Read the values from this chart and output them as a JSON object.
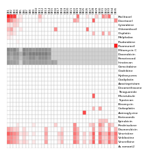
{
  "col_labels": [
    "CB1",
    "CB2",
    "CB3",
    "CB4",
    "CB5",
    "CB6",
    "CB7",
    "CB8",
    "CB9",
    "CB10",
    "CB11",
    "CB12",
    "CB13",
    "CB14",
    "CB15",
    "CB16",
    "CB17",
    "CB18",
    "CB19",
    "CB20",
    "CB21",
    "CB22",
    "CB23",
    "CB24",
    "CB25",
    "CB26",
    "CB27",
    "CB28",
    "CB29",
    "CB30",
    "CB31",
    "CB32",
    "CB33",
    "CB34",
    "CB35"
  ],
  "row_labels": [
    "Paclitaxel",
    "Docetaxel",
    "Cytarabine",
    "Chlorambucil",
    "Cisplatin",
    "Melphalan",
    "Fludarabine",
    "Fluorouracil",
    "Mitomycin C",
    "Doxorubicin",
    "Pemetrexed",
    "Irinotecan",
    "Gemcitabine",
    "Cladribine",
    "Hydroxyurea",
    "Oxaliplatin",
    "Azacitapristam",
    "Dexamethasone",
    "Thioguanide",
    "Microtubule",
    "Topotecan",
    "Bleomycin",
    "Carboplatin",
    "Aminoglycine",
    "Bortezomib",
    "Epirubicin",
    "Prednisolone",
    "Daunorubicin",
    "Vincristine",
    "Vinblastine",
    "Vinorelbine",
    "Ac.romant2"
  ],
  "grid": [
    [
      1.0,
      0.9,
      0.85,
      0.05,
      0.1,
      0.0,
      0.0,
      0.0,
      0.0,
      0.0,
      0.3,
      0.05,
      0.0,
      0.0,
      0.0,
      0.0,
      0.0,
      0.0,
      0.0,
      0.0,
      0.0,
      0.0,
      0.6,
      0.0,
      0.0,
      0.1,
      0.0,
      0.0,
      0.2,
      0.0,
      0.5,
      0.35,
      0.6,
      0.0,
      0.0
    ],
    [
      0.7,
      0.5,
      0.3,
      0.2,
      0.1,
      0.0,
      0.0,
      0.0,
      0.0,
      0.0,
      0.1,
      0.0,
      0.0,
      0.0,
      0.0,
      0.0,
      0.0,
      0.0,
      0.0,
      0.0,
      0.0,
      0.4,
      0.3,
      0.0,
      0.0,
      0.0,
      0.0,
      0.7,
      0.0,
      0.0,
      0.0,
      0.0,
      0.0,
      0.0,
      0.5
    ],
    [
      0.15,
      0.1,
      0.2,
      0.15,
      0.0,
      0.0,
      0.0,
      0.0,
      0.0,
      0.0,
      0.0,
      0.0,
      0.0,
      0.0,
      0.0,
      0.0,
      0.0,
      0.0,
      0.0,
      0.0,
      0.0,
      0.0,
      0.0,
      0.0,
      0.0,
      0.0,
      0.0,
      0.0,
      0.0,
      0.0,
      0.0,
      0.0,
      0.0,
      0.0,
      0.0
    ],
    [
      0.3,
      0.4,
      0.1,
      0.0,
      0.1,
      0.0,
      0.0,
      0.0,
      0.0,
      0.0,
      0.0,
      0.0,
      0.0,
      0.0,
      0.0,
      0.5,
      0.0,
      0.0,
      0.0,
      0.0,
      0.0,
      0.0,
      0.0,
      0.0,
      0.0,
      0.6,
      0.0,
      0.0,
      0.0,
      0.0,
      0.0,
      0.0,
      0.0,
      0.0,
      0.0
    ],
    [
      0.15,
      0.2,
      0.1,
      0.0,
      0.0,
      0.0,
      0.0,
      0.0,
      0.0,
      0.0,
      0.0,
      0.0,
      0.0,
      0.0,
      0.0,
      0.0,
      0.0,
      0.0,
      0.0,
      0.0,
      0.0,
      0.0,
      0.0,
      0.0,
      0.0,
      0.0,
      0.0,
      0.3,
      0.0,
      0.0,
      0.4,
      0.0,
      0.3,
      0.0,
      0.0
    ],
    [
      0.1,
      0.05,
      0.0,
      0.0,
      0.0,
      0.0,
      0.0,
      0.0,
      0.0,
      0.0,
      0.0,
      0.0,
      0.0,
      0.0,
      0.0,
      0.0,
      0.0,
      0.0,
      0.0,
      0.0,
      0.0,
      0.0,
      0.0,
      0.0,
      0.0,
      0.0,
      0.0,
      0.0,
      0.0,
      0.0,
      0.0,
      0.0,
      0.0,
      0.0,
      0.0
    ],
    [
      0.0,
      0.0,
      0.0,
      0.05,
      0.0,
      0.0,
      0.0,
      0.0,
      0.0,
      0.0,
      0.0,
      0.0,
      0.0,
      0.0,
      0.0,
      0.0,
      0.0,
      0.0,
      0.0,
      0.0,
      0.0,
      0.0,
      0.0,
      0.0,
      0.0,
      0.0,
      0.0,
      0.0,
      0.0,
      0.0,
      0.0,
      0.0,
      0.0,
      0.0,
      0.0
    ],
    [
      0.0,
      0.0,
      0.0,
      0.0,
      0.0,
      0.0,
      0.0,
      0.0,
      0.0,
      0.0,
      0.0,
      0.0,
      0.0,
      0.0,
      0.0,
      0.0,
      0.0,
      0.0,
      0.0,
      0.0,
      0.0,
      0.0,
      0.0,
      0.0,
      0.0,
      0.0,
      0.0,
      0.0,
      0.0,
      0.0,
      0.0,
      0.0,
      0.0,
      0.0,
      1.0
    ],
    [
      0.45,
      0.4,
      0.45,
      0.3,
      0.0,
      0.45,
      0.4,
      0.4,
      0.35,
      0.4,
      0.4,
      0.4,
      0.4,
      0.35,
      0.0,
      0.0,
      0.0,
      0.0,
      0.0,
      0.0,
      0.0,
      0.0,
      0.0,
      0.0,
      0.0,
      0.0,
      0.0,
      0.0,
      0.0,
      0.0,
      0.0,
      0.0,
      0.0,
      0.0,
      0.0
    ],
    [
      0.4,
      0.3,
      0.4,
      0.4,
      0.2,
      0.5,
      0.4,
      0.5,
      0.5,
      0.5,
      0.5,
      0.5,
      0.5,
      0.4,
      0.0,
      0.0,
      0.0,
      0.0,
      0.0,
      0.0,
      0.0,
      0.0,
      0.0,
      0.0,
      0.0,
      0.0,
      0.0,
      0.0,
      0.0,
      0.0,
      0.0,
      0.0,
      0.0,
      0.0,
      0.0
    ],
    [
      0.3,
      0.2,
      0.3,
      0.3,
      0.1,
      0.3,
      0.3,
      0.4,
      0.4,
      0.3,
      0.4,
      0.4,
      0.4,
      0.3,
      0.0,
      0.0,
      0.0,
      0.0,
      0.0,
      0.0,
      0.0,
      0.0,
      0.0,
      0.0,
      0.0,
      0.0,
      0.0,
      0.0,
      0.0,
      0.0,
      0.0,
      0.0,
      0.0,
      0.0,
      0.0
    ],
    [
      0.35,
      0.3,
      0.3,
      0.25,
      0.0,
      0.3,
      0.25,
      0.3,
      0.3,
      0.3,
      0.3,
      0.3,
      0.3,
      0.25,
      0.3,
      0.25,
      0.0,
      0.0,
      0.0,
      0.0,
      0.0,
      0.0,
      0.0,
      0.0,
      0.0,
      0.0,
      0.0,
      0.0,
      0.0,
      0.0,
      0.0,
      0.0,
      0.0,
      0.0,
      0.0
    ],
    [
      0.0,
      0.0,
      0.0,
      0.0,
      0.0,
      0.0,
      0.0,
      0.0,
      0.0,
      0.0,
      0.0,
      0.0,
      0.0,
      0.0,
      0.0,
      0.0,
      0.0,
      0.0,
      0.0,
      0.0,
      0.0,
      0.0,
      0.0,
      0.0,
      0.0,
      0.0,
      0.0,
      0.0,
      0.0,
      0.0,
      0.0,
      0.0,
      0.0,
      0.0,
      0.0
    ],
    [
      0.0,
      0.0,
      0.0,
      0.0,
      0.0,
      0.0,
      0.0,
      0.0,
      0.0,
      0.0,
      0.0,
      0.0,
      0.0,
      0.0,
      0.0,
      0.0,
      0.0,
      0.0,
      0.0,
      0.0,
      0.0,
      0.0,
      0.0,
      0.0,
      0.0,
      0.0,
      0.0,
      0.0,
      0.0,
      0.0,
      0.0,
      0.0,
      0.0,
      0.0,
      0.0
    ],
    [
      0.0,
      0.0,
      0.0,
      0.0,
      0.0,
      0.0,
      0.0,
      0.0,
      0.0,
      0.0,
      0.0,
      0.0,
      0.0,
      0.0,
      0.0,
      0.0,
      0.0,
      0.0,
      0.0,
      0.0,
      0.0,
      0.0,
      0.0,
      0.0,
      0.0,
      0.0,
      0.0,
      0.0,
      0.0,
      0.0,
      0.0,
      0.0,
      0.0,
      0.0,
      0.0
    ],
    [
      0.0,
      0.0,
      0.0,
      0.0,
      0.0,
      0.0,
      0.0,
      0.0,
      0.0,
      0.0,
      0.0,
      0.0,
      0.0,
      0.0,
      0.0,
      0.0,
      0.0,
      0.0,
      0.0,
      0.0,
      0.0,
      0.0,
      0.0,
      0.0,
      0.0,
      0.0,
      0.0,
      0.0,
      0.0,
      0.0,
      0.0,
      0.0,
      0.0,
      0.0,
      0.0
    ],
    [
      0.0,
      0.0,
      0.0,
      0.0,
      0.0,
      0.0,
      0.0,
      0.0,
      0.0,
      0.0,
      0.0,
      0.0,
      0.0,
      0.0,
      0.0,
      0.0,
      0.0,
      0.0,
      0.0,
      0.0,
      0.0,
      0.0,
      0.0,
      0.0,
      0.0,
      0.0,
      0.0,
      0.0,
      0.0,
      0.0,
      0.0,
      0.0,
      0.0,
      0.0,
      0.0
    ],
    [
      0.0,
      0.0,
      0.0,
      0.0,
      0.0,
      0.0,
      0.0,
      0.0,
      0.0,
      0.0,
      0.0,
      0.0,
      0.0,
      0.0,
      0.0,
      0.0,
      0.0,
      0.0,
      0.0,
      0.0,
      0.0,
      0.0,
      0.0,
      0.0,
      0.0,
      0.0,
      0.0,
      0.0,
      0.0,
      0.0,
      0.0,
      0.0,
      0.0,
      0.0,
      0.0
    ],
    [
      0.0,
      0.0,
      0.0,
      0.0,
      0.0,
      0.0,
      0.0,
      0.0,
      0.0,
      0.0,
      0.0,
      0.0,
      0.0,
      0.0,
      0.0,
      0.0,
      0.0,
      0.0,
      0.0,
      0.0,
      0.0,
      0.0,
      0.0,
      0.0,
      0.0,
      0.0,
      0.0,
      0.0,
      0.0,
      0.0,
      0.0,
      0.0,
      0.0,
      0.0,
      0.0
    ],
    [
      0.0,
      0.0,
      0.0,
      0.0,
      0.0,
      0.0,
      0.0,
      0.0,
      0.0,
      0.0,
      0.0,
      0.0,
      0.0,
      0.0,
      0.0,
      0.0,
      0.0,
      0.0,
      0.0,
      0.0,
      0.0,
      0.0,
      0.0,
      0.0,
      0.0,
      0.0,
      0.0,
      0.7,
      0.0,
      0.0,
      0.0,
      0.0,
      0.0,
      0.0,
      0.0
    ],
    [
      0.0,
      0.0,
      0.0,
      0.0,
      0.0,
      0.0,
      0.0,
      0.0,
      0.0,
      0.0,
      0.0,
      0.0,
      0.0,
      0.0,
      0.0,
      0.0,
      0.0,
      0.0,
      0.0,
      0.0,
      0.0,
      0.0,
      0.0,
      0.0,
      0.0,
      0.0,
      0.0,
      0.0,
      0.0,
      0.0,
      0.0,
      0.0,
      0.0,
      0.0,
      0.0
    ],
    [
      0.0,
      0.0,
      0.0,
      0.0,
      0.0,
      0.0,
      0.0,
      0.0,
      0.0,
      0.0,
      0.0,
      0.0,
      0.0,
      0.0,
      0.0,
      0.0,
      0.0,
      0.0,
      0.0,
      0.0,
      0.0,
      0.0,
      0.0,
      0.0,
      0.0,
      0.0,
      0.0,
      0.0,
      0.0,
      0.0,
      0.0,
      0.0,
      0.0,
      0.0,
      0.0
    ],
    [
      0.0,
      0.0,
      0.0,
      0.0,
      0.0,
      0.0,
      0.0,
      0.0,
      0.0,
      0.0,
      0.0,
      0.0,
      0.0,
      0.0,
      0.0,
      0.0,
      0.0,
      0.0,
      0.0,
      0.0,
      0.0,
      0.0,
      0.0,
      0.0,
      0.0,
      0.0,
      0.0,
      0.3,
      0.0,
      0.4,
      0.0,
      0.0,
      0.0,
      0.0,
      0.0
    ],
    [
      0.0,
      0.0,
      0.0,
      0.0,
      0.0,
      0.0,
      0.0,
      0.0,
      0.0,
      0.0,
      0.0,
      0.0,
      0.0,
      0.0,
      0.0,
      0.0,
      0.0,
      0.0,
      0.0,
      0.0,
      0.0,
      0.0,
      0.0,
      0.0,
      0.8,
      0.0,
      0.0,
      0.0,
      0.0,
      0.0,
      0.0,
      0.0,
      0.0,
      0.0,
      0.0
    ],
    [
      0.0,
      0.0,
      0.0,
      0.0,
      0.0,
      0.0,
      0.0,
      0.0,
      0.0,
      0.0,
      0.0,
      0.0,
      0.0,
      0.0,
      0.0,
      0.0,
      0.0,
      0.0,
      0.0,
      0.0,
      0.0,
      0.0,
      0.0,
      0.0,
      0.0,
      0.0,
      0.0,
      0.0,
      0.0,
      0.0,
      0.0,
      0.0,
      0.0,
      0.0,
      0.0
    ],
    [
      0.0,
      0.0,
      0.0,
      0.0,
      0.0,
      0.0,
      0.0,
      0.0,
      0.0,
      0.0,
      0.0,
      0.0,
      0.0,
      0.0,
      0.0,
      0.0,
      0.0,
      0.0,
      0.0,
      0.0,
      0.0,
      0.0,
      0.0,
      0.0,
      0.0,
      0.0,
      0.0,
      0.0,
      0.0,
      0.25,
      0.25,
      0.25,
      0.0,
      0.0,
      0.0
    ],
    [
      0.0,
      0.0,
      0.0,
      0.1,
      0.0,
      0.0,
      0.0,
      0.0,
      0.1,
      0.0,
      0.0,
      0.0,
      0.0,
      0.0,
      0.0,
      0.2,
      0.0,
      0.0,
      0.0,
      0.0,
      0.0,
      0.5,
      0.0,
      0.0,
      0.0,
      0.0,
      0.2,
      0.3,
      0.0,
      0.5,
      0.3,
      0.0,
      0.35,
      0.2,
      0.0
    ],
    [
      0.4,
      0.3,
      0.2,
      0.2,
      0.0,
      0.15,
      0.0,
      0.0,
      0.0,
      0.0,
      0.0,
      0.0,
      0.3,
      0.0,
      0.0,
      0.0,
      0.0,
      0.15,
      0.0,
      0.0,
      0.0,
      0.5,
      0.3,
      0.0,
      0.0,
      0.0,
      0.0,
      0.4,
      0.0,
      0.3,
      0.15,
      0.0,
      0.4,
      0.0,
      0.3
    ],
    [
      0.7,
      0.6,
      0.5,
      0.4,
      0.1,
      0.2,
      0.1,
      0.0,
      0.1,
      0.0,
      0.0,
      0.0,
      0.4,
      0.0,
      0.0,
      0.0,
      0.2,
      0.3,
      0.0,
      0.0,
      0.0,
      0.6,
      0.4,
      0.0,
      0.2,
      0.0,
      0.2,
      0.7,
      0.0,
      0.6,
      0.3,
      0.3,
      0.65,
      0.3,
      0.6
    ],
    [
      0.5,
      0.5,
      0.4,
      0.3,
      0.0,
      0.15,
      0.0,
      0.0,
      0.0,
      0.0,
      0.0,
      0.0,
      0.3,
      0.0,
      0.0,
      0.0,
      0.1,
      0.2,
      0.0,
      0.0,
      0.0,
      0.5,
      0.3,
      0.0,
      0.1,
      0.0,
      0.1,
      0.6,
      0.0,
      0.5,
      0.2,
      0.2,
      0.5,
      0.2,
      0.5
    ],
    [
      0.6,
      0.5,
      0.4,
      0.3,
      0.1,
      0.2,
      0.1,
      0.0,
      0.1,
      0.0,
      0.0,
      0.0,
      0.4,
      0.0,
      0.0,
      0.0,
      0.1,
      0.3,
      0.0,
      0.0,
      0.0,
      0.6,
      0.4,
      0.0,
      0.2,
      0.0,
      0.2,
      0.7,
      0.0,
      0.6,
      0.3,
      0.2,
      0.6,
      0.3,
      0.5
    ],
    [
      0.0,
      0.0,
      0.0,
      0.0,
      0.0,
      0.0,
      0.0,
      0.0,
      0.0,
      0.0,
      0.0,
      0.0,
      0.0,
      0.0,
      0.0,
      0.0,
      0.0,
      0.0,
      0.0,
      0.0,
      0.0,
      0.0,
      0.0,
      0.0,
      0.0,
      0.0,
      0.0,
      0.0,
      0.0,
      0.0,
      0.0,
      0.0,
      0.0,
      0.0,
      0.0
    ]
  ],
  "gray_rows": [
    8,
    9,
    10,
    11
  ],
  "background": "#ffffff",
  "label_fontsize": 3.2,
  "col_label_fontsize": 2.8,
  "grid_linewidth": 0.25,
  "grid_color": "#bbbbbb"
}
